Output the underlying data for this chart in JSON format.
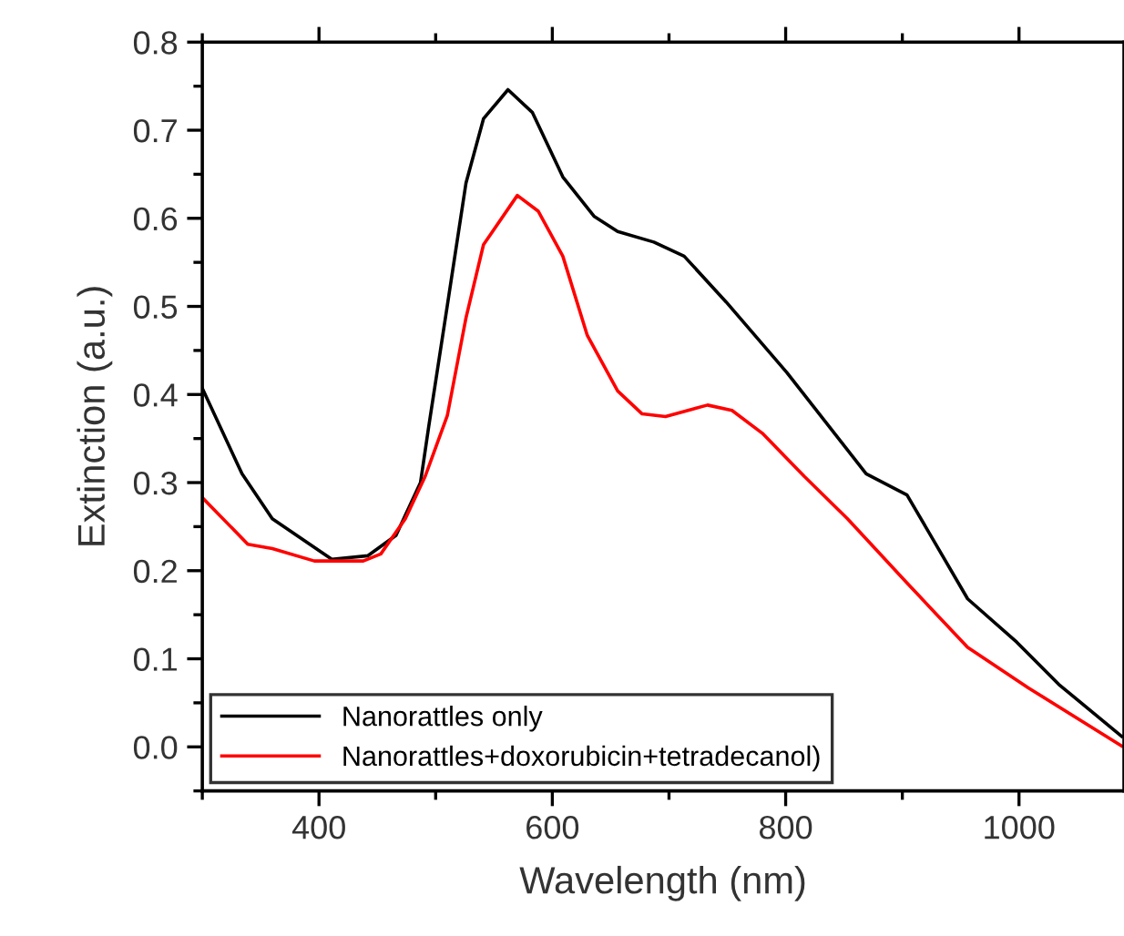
{
  "chart_data": {
    "type": "line",
    "xlabel": "Wavelength (nm)",
    "ylabel": "Extinction (a.u.)",
    "xlim": [
      300,
      1090
    ],
    "ylim": [
      -0.05,
      0.8
    ],
    "xticks": [
      400,
      600,
      800,
      1000
    ],
    "yticks": [
      {
        "value": 0,
        "label": "0.0"
      },
      0.1,
      0.2,
      0.3,
      0.4,
      0.5,
      0.6,
      0.7,
      0.8
    ],
    "legend": "bottom left",
    "grid": false,
    "marker": "none",
    "line_style": "solid",
    "series": [
      {
        "name": "Nanorattles only",
        "color": "#000000",
        "x": [
          300,
          334,
          360,
          411,
          442,
          466,
          487,
          494,
          510,
          526,
          541,
          562,
          583,
          609,
          636,
          656,
          687,
          713,
          749,
          801,
          869,
          904,
          956,
          998,
          1034,
          1088
        ],
        "values": [
          0.407,
          0.31,
          0.259,
          0.213,
          0.217,
          0.24,
          0.3,
          0.363,
          0.501,
          0.64,
          0.713,
          0.746,
          0.72,
          0.647,
          0.602,
          0.585,
          0.573,
          0.557,
          0.505,
          0.425,
          0.31,
          0.286,
          0.168,
          0.119,
          0.071,
          0.012
        ]
      },
      {
        "name": "Nanorattles+doxorubicin+tetradecanol)",
        "color": "#ff0000",
        "x": [
          300,
          339,
          360,
          396,
          438,
          453,
          474,
          491,
          510,
          526,
          541,
          570,
          588,
          609,
          630,
          656,
          677,
          697,
          733,
          754,
          780,
          816,
          853,
          904,
          956,
          1008,
          1088
        ],
        "values": [
          0.283,
          0.23,
          0.225,
          0.211,
          0.211,
          0.219,
          0.259,
          0.307,
          0.376,
          0.487,
          0.57,
          0.626,
          0.608,
          0.557,
          0.467,
          0.404,
          0.378,
          0.375,
          0.388,
          0.382,
          0.356,
          0.307,
          0.259,
          0.186,
          0.113,
          0.067,
          0.001
        ]
      }
    ]
  }
}
